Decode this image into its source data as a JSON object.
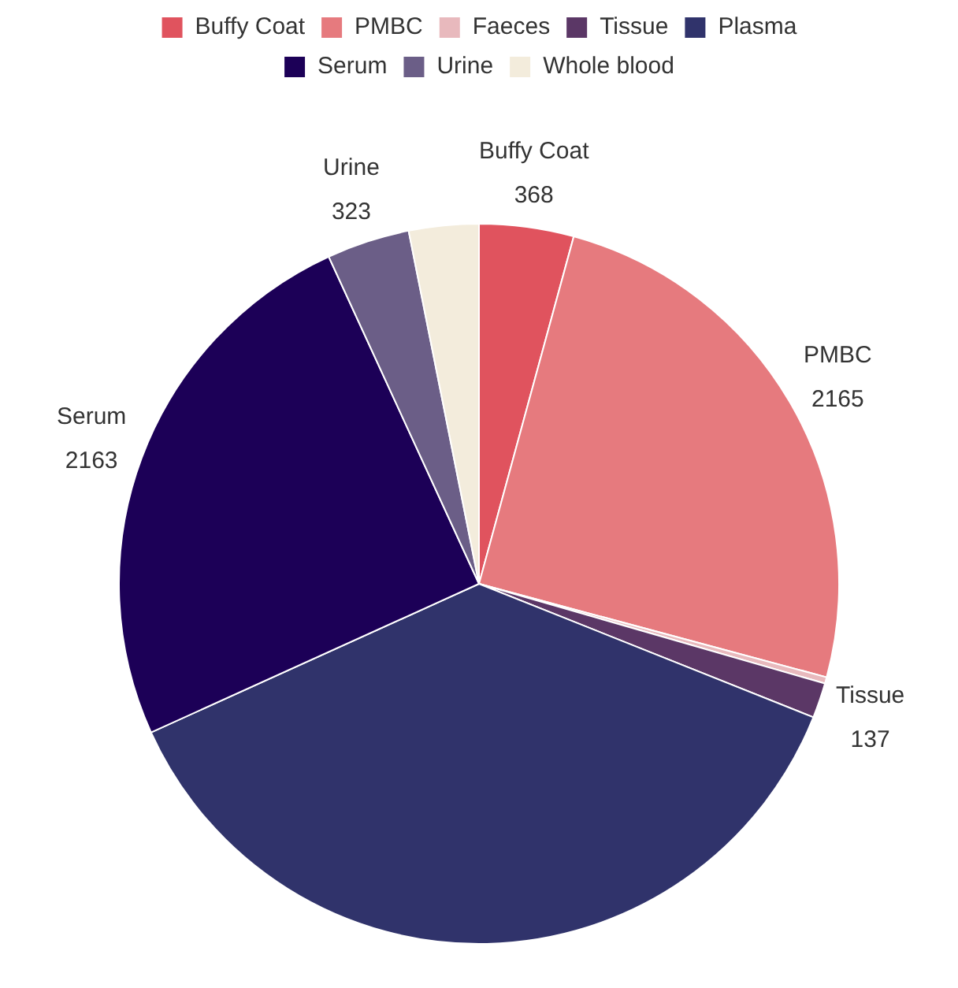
{
  "chart_data": {
    "type": "pie",
    "categories": [
      "Buffy Coat",
      "PMBC",
      "Faeces",
      "Tissue",
      "Plasma",
      "Serum",
      "Urine",
      "Whole blood"
    ],
    "values": [
      368,
      2165,
      25,
      137,
      3228,
      2163,
      323,
      272
    ],
    "value_labels": [
      "368",
      "2165",
      null,
      "137",
      null,
      "2163",
      "323",
      null
    ],
    "colors": [
      "#e0535e",
      "#e67a7e",
      "#e8b9bd",
      "#5b3766",
      "#30336b",
      "#1c0057",
      "#6b5e87",
      "#f3ecdc"
    ],
    "legend": "top"
  }
}
